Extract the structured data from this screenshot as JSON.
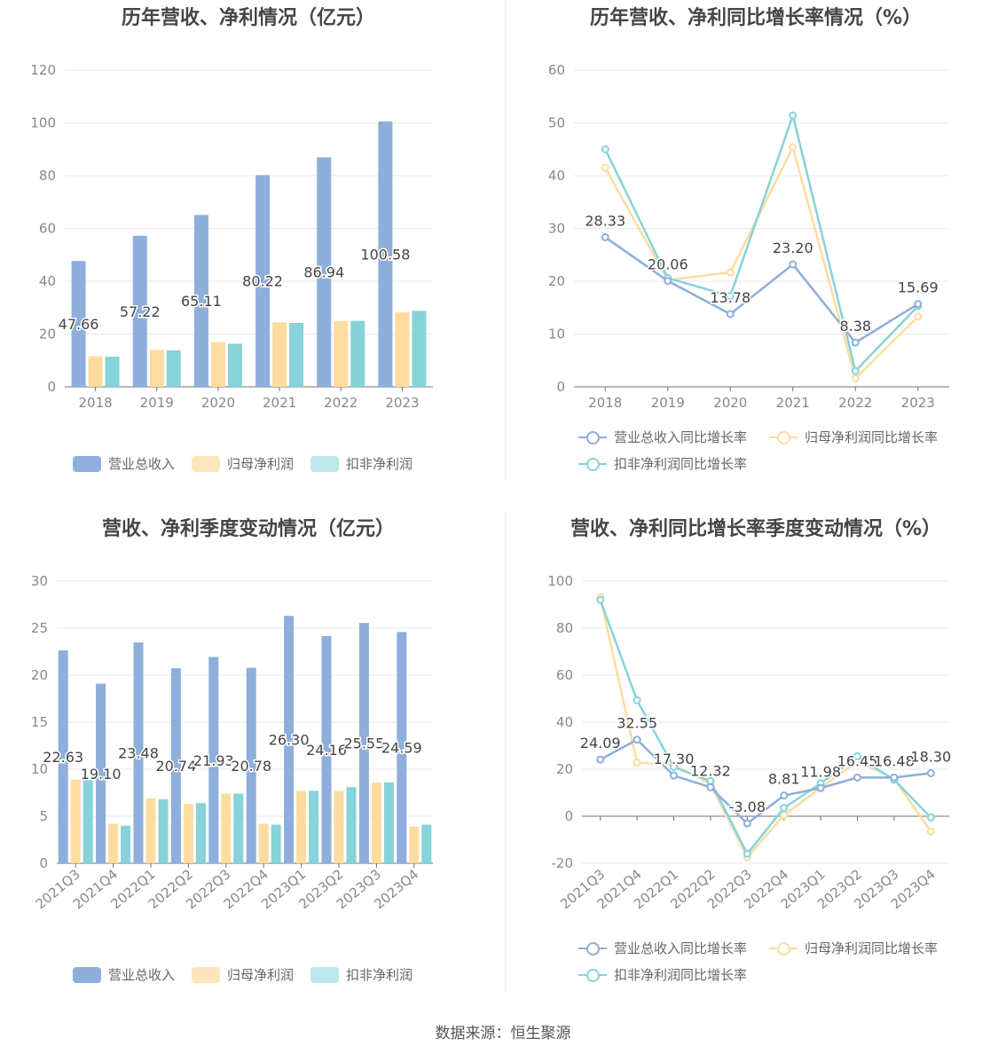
{
  "colors": {
    "revenue": "#8eaedb",
    "net_profit": "#fddca0",
    "deducted_profit": "#86d3d9",
    "grid": "#e6e9f0",
    "axis_text": "#888888"
  },
  "footer": "数据来源：恒生聚源",
  "chart_data": [
    {
      "id": "annual-values",
      "type": "bar",
      "title": "历年营收、净利情况（亿元）",
      "categories": [
        "2018",
        "2019",
        "2020",
        "2021",
        "2022",
        "2023"
      ],
      "ylim": [
        0,
        120
      ],
      "yticks": [
        0,
        20,
        40,
        60,
        80,
        100,
        120
      ],
      "series": [
        {
          "name": "营业总收入",
          "values": [
            47.66,
            57.22,
            65.11,
            80.22,
            86.94,
            100.58
          ],
          "labels": [
            "47.66",
            "57.22",
            "65.11",
            "80.22",
            "86.94",
            "100.58"
          ]
        },
        {
          "name": "归母净利润",
          "values": [
            11.6,
            14.0,
            17.0,
            24.4,
            24.9,
            28.2
          ]
        },
        {
          "name": "扣非净利润",
          "values": [
            11.4,
            13.8,
            16.3,
            24.2,
            25.0,
            28.8
          ]
        }
      ]
    },
    {
      "id": "annual-growth",
      "type": "line",
      "title": "历年营收、净利同比增长率情况（%）",
      "categories": [
        "2018",
        "2019",
        "2020",
        "2021",
        "2022",
        "2023"
      ],
      "ylim": [
        0,
        60
      ],
      "yticks": [
        0,
        10,
        20,
        30,
        40,
        50,
        60
      ],
      "series": [
        {
          "name": "营业总收入同比增长率",
          "values": [
            28.33,
            20.06,
            13.78,
            23.2,
            8.38,
            15.69
          ],
          "labels": [
            "28.33",
            "20.06",
            "13.78",
            "23.20",
            "8.38",
            "15.69"
          ]
        },
        {
          "name": "归母净利润同比增长率",
          "values": [
            41.5,
            20.2,
            21.7,
            45.4,
            1.6,
            13.3
          ]
        },
        {
          "name": "扣非净利润同比增长率",
          "values": [
            45.0,
            20.6,
            17.2,
            51.4,
            3.0,
            15.3
          ]
        }
      ]
    },
    {
      "id": "quarterly-values",
      "type": "bar",
      "title": "营收、净利季度变动情况（亿元）",
      "categories": [
        "2021Q3",
        "2021Q4",
        "2022Q1",
        "2022Q2",
        "2022Q3",
        "2022Q4",
        "2023Q1",
        "2023Q2",
        "2023Q3",
        "2023Q4"
      ],
      "ylim": [
        0,
        30
      ],
      "yticks": [
        0,
        5,
        10,
        15,
        20,
        25,
        30
      ],
      "series": [
        {
          "name": "营业总收入",
          "values": [
            22.63,
            19.1,
            23.48,
            20.74,
            21.93,
            20.78,
            26.3,
            24.16,
            25.55,
            24.59
          ],
          "labels": [
            "22.63",
            "19.10",
            "23.48",
            "20.74",
            "21.93",
            "20.78",
            "26.30",
            "24.16",
            "25.55",
            "24.59"
          ]
        },
        {
          "name": "归母净利润",
          "values": [
            8.9,
            4.2,
            6.9,
            6.3,
            7.4,
            4.2,
            7.7,
            7.7,
            8.6,
            3.9
          ]
        },
        {
          "name": "扣非净利润",
          "values": [
            8.9,
            4.0,
            6.8,
            6.4,
            7.4,
            4.1,
            7.7,
            8.1,
            8.6,
            4.1
          ]
        }
      ]
    },
    {
      "id": "quarterly-growth",
      "type": "line",
      "title": "营收、净利同比增长率季度变动情况（%）",
      "categories": [
        "2021Q3",
        "2021Q4",
        "2022Q1",
        "2022Q2",
        "2022Q3",
        "2022Q4",
        "2023Q1",
        "2023Q2",
        "2023Q3",
        "2023Q4"
      ],
      "ylim": [
        -20,
        100
      ],
      "yticks": [
        -20,
        0,
        20,
        40,
        60,
        80,
        100
      ],
      "series": [
        {
          "name": "营业总收入同比增长率",
          "values": [
            24.09,
            32.55,
            17.3,
            12.32,
            -3.08,
            8.81,
            11.98,
            16.45,
            16.48,
            18.3
          ],
          "labels": [
            "24.09",
            "32.55",
            "17.30",
            "12.32",
            "-3.08",
            "8.81",
            "11.98",
            "16.45",
            "16.48",
            "18.30"
          ]
        },
        {
          "name": "归母净利润同比增长率",
          "values": [
            93.0,
            22.8,
            21.8,
            13.8,
            -17.5,
            0.5,
            12.0,
            23.5,
            16.0,
            -6.5
          ]
        },
        {
          "name": "扣非净利润同比增长率",
          "values": [
            92.0,
            49.3,
            20.9,
            15.0,
            -16.0,
            3.5,
            14.0,
            25.5,
            15.5,
            -0.5
          ]
        }
      ]
    }
  ]
}
